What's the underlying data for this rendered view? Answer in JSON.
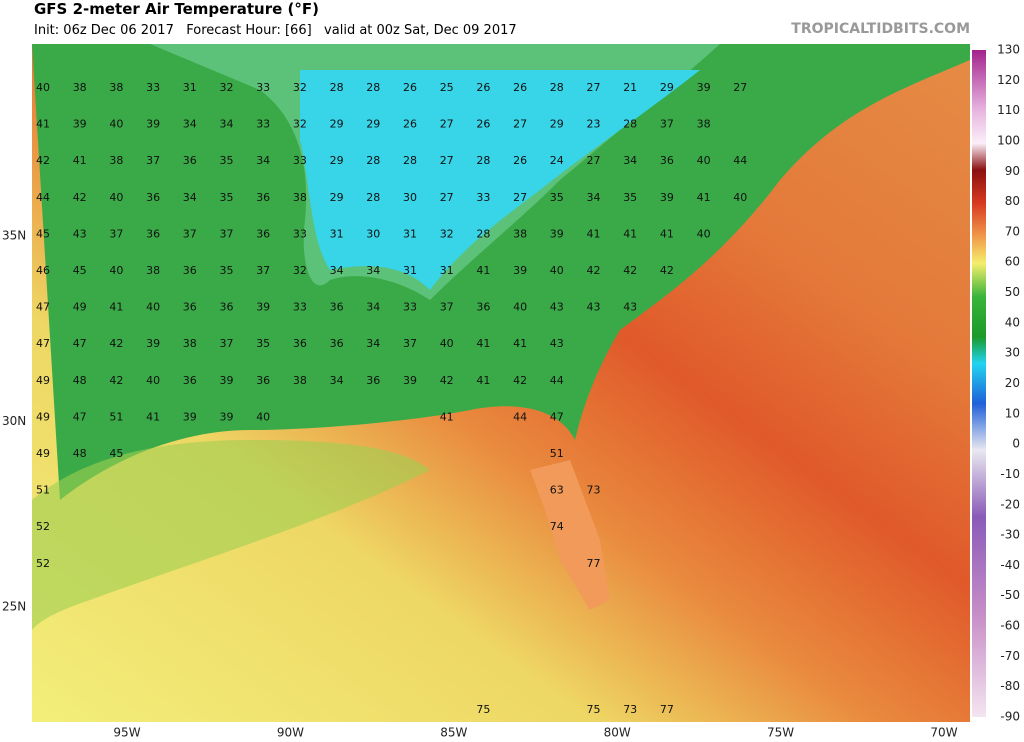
{
  "header": {
    "title": "GFS 2-meter Air Temperature (°F)",
    "subtitle": "Init: 06z Dec 06 2017   Forecast Hour: [66]   valid at 00z Sat, Dec 09 2017",
    "watermark": "TROPICALTIDBITS.COM"
  },
  "map": {
    "lat_labels": [
      "35N",
      "30N",
      "25N"
    ],
    "lon_labels": [
      "95W",
      "90W",
      "85W",
      "80W",
      "75W",
      "70W"
    ],
    "station_rows": [
      [
        40,
        38,
        38,
        33,
        31,
        32,
        33,
        32,
        28,
        28,
        26,
        25,
        26,
        26,
        28,
        27,
        21,
        29,
        39,
        27
      ],
      [
        41,
        39,
        40,
        39,
        34,
        34,
        33,
        32,
        29,
        29,
        26,
        27,
        26,
        27,
        29,
        23,
        28,
        37,
        38,
        null
      ],
      [
        42,
        41,
        38,
        37,
        36,
        35,
        34,
        33,
        29,
        28,
        28,
        27,
        28,
        26,
        24,
        27,
        34,
        36,
        40,
        44
      ],
      [
        44,
        42,
        40,
        36,
        34,
        35,
        36,
        38,
        29,
        28,
        30,
        27,
        33,
        27,
        35,
        34,
        35,
        39,
        41,
        40
      ],
      [
        45,
        43,
        37,
        36,
        37,
        37,
        36,
        33,
        31,
        30,
        31,
        32,
        28,
        38,
        39,
        41,
        41,
        41,
        40,
        null
      ],
      [
        46,
        45,
        40,
        38,
        36,
        35,
        37,
        32,
        34,
        34,
        31,
        31,
        41,
        39,
        40,
        42,
        42,
        42,
        null,
        null
      ],
      [
        47,
        49,
        41,
        40,
        36,
        36,
        39,
        33,
        36,
        34,
        33,
        37,
        36,
        40,
        43,
        43,
        43,
        null,
        null,
        null
      ],
      [
        47,
        47,
        42,
        39,
        38,
        37,
        35,
        36,
        36,
        34,
        37,
        40,
        41,
        41,
        43,
        null,
        null,
        null,
        null,
        null
      ],
      [
        49,
        48,
        42,
        40,
        36,
        39,
        36,
        38,
        34,
        36,
        39,
        42,
        41,
        42,
        44,
        null,
        null,
        null,
        null,
        null
      ],
      [
        49,
        47,
        51,
        41,
        39,
        39,
        40,
        null,
        null,
        null,
        null,
        41,
        null,
        44,
        47,
        null,
        null,
        null,
        null,
        null
      ],
      [
        49,
        48,
        45,
        null,
        null,
        null,
        null,
        null,
        null,
        null,
        null,
        null,
        null,
        null,
        51,
        null,
        null,
        null,
        null,
        null
      ],
      [
        51,
        null,
        null,
        null,
        null,
        null,
        null,
        null,
        null,
        null,
        null,
        null,
        null,
        null,
        63,
        73,
        null,
        null,
        null,
        null
      ],
      [
        52,
        null,
        null,
        null,
        null,
        null,
        null,
        null,
        null,
        null,
        null,
        null,
        null,
        null,
        74,
        null,
        null,
        null,
        null,
        null
      ],
      [
        52,
        null,
        null,
        null,
        null,
        null,
        null,
        null,
        null,
        null,
        null,
        null,
        null,
        null,
        null,
        77,
        null,
        null,
        null,
        null
      ],
      [],
      [],
      [],
      [
        null,
        null,
        null,
        null,
        null,
        null,
        null,
        null,
        null,
        null,
        null,
        null,
        75,
        null,
        null,
        75,
        73,
        77,
        null,
        null
      ]
    ]
  },
  "colorbar": {
    "labels": [
      130,
      120,
      110,
      100,
      90,
      80,
      70,
      60,
      50,
      40,
      30,
      20,
      10,
      0,
      -10,
      -20,
      -30,
      -40,
      -50,
      -60,
      -70,
      -80,
      -90
    ]
  }
}
